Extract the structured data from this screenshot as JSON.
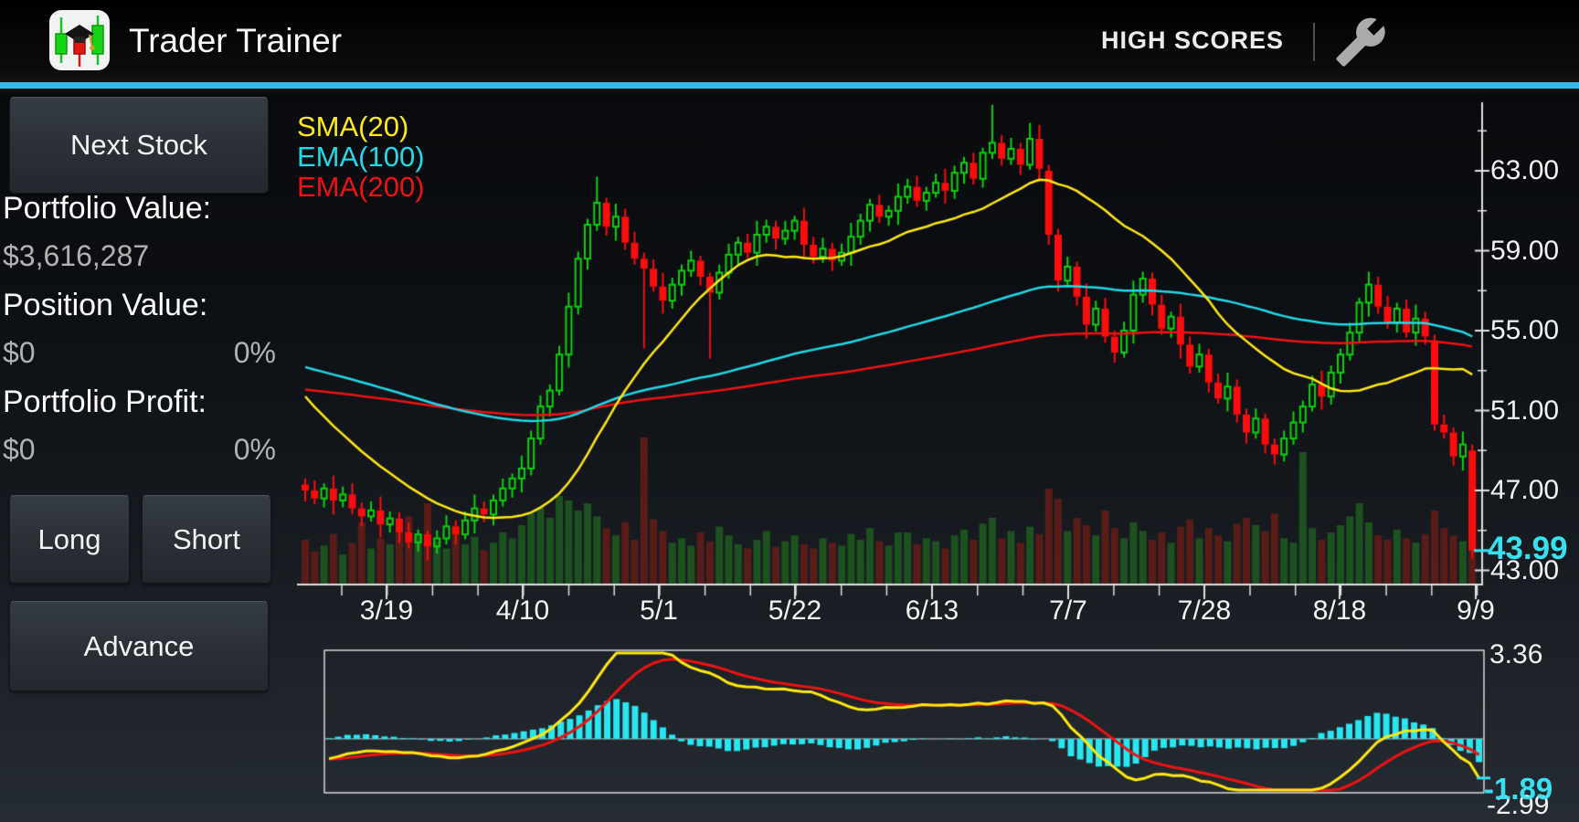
{
  "app_bar": {
    "title": "Trader Trainer",
    "menu_high_scores": "HIGH SCORES",
    "accent_color": "#38b9ea",
    "icons": [
      "app-candlestick-graduation-icon",
      "wrench-settings-icon"
    ]
  },
  "sidebar": {
    "next_stock_label": "Next Stock",
    "portfolio_value_label": "Portfolio Value:",
    "portfolio_value": "$3,616,287",
    "position_value_label": "Position Value:",
    "position_value": "$0",
    "position_percent": "0%",
    "portfolio_profit_label": "Portfolio Profit:",
    "portfolio_profit": "$0",
    "portfolio_profit_percent": "0%",
    "long_label": "Long",
    "short_label": "Short",
    "advance_label": "Advance"
  },
  "chart_data": {
    "type": "candlestick",
    "legend": [
      {
        "label": "SMA(20)",
        "color": "#ffe912"
      },
      {
        "label": "EMA(100)",
        "color": "#22d9e8"
      },
      {
        "label": "EMA(200)",
        "color": "#f01212"
      }
    ],
    "y_axis": {
      "labels": [
        "63.00",
        "59.00",
        "55.00",
        "51.00",
        "47.00",
        "43.00"
      ],
      "values": [
        63,
        59,
        55,
        51,
        47,
        43
      ],
      "minor_step": 2
    },
    "x_axis": {
      "labels": [
        "3/19",
        "4/10",
        "5/1",
        "5/22",
        "6/13",
        "7/7",
        "7/28",
        "8/18",
        "9/9"
      ]
    },
    "current_price_label": "43.99",
    "current_price_value": 43.99,
    "colors": {
      "up": "#0bd30b",
      "down": "#fb0d0d",
      "volume_up": "#1d5220",
      "volume_down": "#5a1c18",
      "axis": "#e0e0e0",
      "current": "#38e1f2"
    },
    "candles": [
      [
        47.3,
        47.6,
        46.45,
        47.0
      ],
      [
        47.0,
        47.5,
        46.3,
        46.6
      ],
      [
        46.6,
        47.35,
        46.15,
        47.1
      ],
      [
        47.1,
        47.75,
        45.8,
        46.5
      ],
      [
        46.5,
        47.2,
        46.15,
        46.8
      ],
      [
        46.8,
        47.35,
        45.8,
        46.1
      ],
      [
        46.1,
        46.4,
        45.2,
        45.7
      ],
      [
        45.7,
        46.45,
        45.45,
        46.0
      ],
      [
        46.0,
        46.7,
        44.65,
        45.3
      ],
      [
        45.3,
        45.95,
        44.9,
        45.6
      ],
      [
        45.6,
        45.9,
        44.35,
        44.9
      ],
      [
        44.9,
        45.4,
        44.1,
        44.4
      ],
      [
        44.4,
        45.05,
        43.95,
        44.8
      ],
      [
        44.8,
        45.0,
        43.5,
        44.2
      ],
      [
        44.2,
        45.0,
        43.85,
        44.6
      ],
      [
        44.6,
        45.75,
        44.3,
        45.2
      ],
      [
        45.2,
        45.5,
        44.3,
        44.8
      ],
      [
        44.8,
        45.95,
        44.55,
        45.5
      ],
      [
        45.5,
        46.8,
        44.85,
        46.1
      ],
      [
        46.1,
        46.45,
        45.4,
        45.8
      ],
      [
        45.8,
        46.8,
        45.25,
        46.5
      ],
      [
        46.5,
        47.6,
        46.2,
        47.1
      ],
      [
        47.1,
        47.85,
        46.65,
        47.6
      ],
      [
        47.6,
        48.75,
        46.9,
        48.1
      ],
      [
        48.1,
        50.0,
        47.75,
        49.6
      ],
      [
        49.6,
        51.75,
        49.3,
        51.2
      ],
      [
        51.2,
        52.3,
        50.7,
        52.0
      ],
      [
        52.0,
        54.25,
        51.75,
        53.8
      ],
      [
        53.8,
        56.9,
        53.15,
        56.2
      ],
      [
        56.2,
        58.95,
        55.8,
        58.6
      ],
      [
        58.6,
        60.6,
        58.05,
        60.3
      ],
      [
        60.3,
        62.7,
        60.0,
        61.4
      ],
      [
        61.4,
        61.65,
        59.75,
        60.2
      ],
      [
        60.2,
        61.35,
        59.5,
        60.7
      ],
      [
        60.7,
        61.1,
        59.05,
        59.4
      ],
      [
        59.4,
        59.95,
        58.3,
        58.6
      ],
      [
        58.6,
        58.9,
        54.1,
        58.1
      ],
      [
        58.1,
        58.55,
        56.95,
        57.2
      ],
      [
        57.2,
        57.9,
        55.85,
        56.5
      ],
      [
        56.5,
        57.65,
        56.1,
        57.3
      ],
      [
        57.3,
        58.3,
        56.75,
        58.0
      ],
      [
        58.0,
        59.0,
        57.7,
        58.5
      ],
      [
        58.5,
        58.75,
        57.25,
        57.7
      ],
      [
        57.7,
        57.9,
        53.6,
        56.9
      ],
      [
        56.9,
        58.3,
        56.55,
        57.9
      ],
      [
        57.9,
        59.35,
        57.6,
        58.8
      ],
      [
        58.8,
        59.7,
        58.3,
        59.4
      ],
      [
        59.4,
        59.85,
        58.65,
        58.9
      ],
      [
        58.9,
        60.5,
        58.25,
        59.8
      ],
      [
        59.8,
        60.55,
        59.4,
        60.2
      ],
      [
        60.2,
        60.5,
        59.05,
        59.6
      ],
      [
        59.6,
        60.5,
        59.3,
        60.0
      ],
      [
        60.0,
        60.75,
        59.55,
        60.5
      ],
      [
        60.5,
        61.15,
        58.6,
        59.3
      ],
      [
        59.3,
        59.7,
        58.35,
        58.7
      ],
      [
        58.7,
        59.65,
        58.4,
        59.1
      ],
      [
        59.1,
        59.4,
        58.0,
        58.5
      ],
      [
        58.5,
        59.35,
        58.25,
        58.9
      ],
      [
        58.9,
        60.4,
        58.25,
        59.7
      ],
      [
        59.7,
        60.85,
        59.3,
        60.5
      ],
      [
        60.5,
        61.6,
        59.95,
        61.3
      ],
      [
        61.3,
        61.8,
        60.4,
        60.7
      ],
      [
        60.7,
        61.25,
        60.25,
        61.0
      ],
      [
        61.0,
        62.35,
        60.3,
        61.7
      ],
      [
        61.7,
        62.6,
        61.35,
        62.2
      ],
      [
        62.2,
        62.75,
        61.2,
        61.5
      ],
      [
        61.5,
        62.2,
        61.0,
        61.9
      ],
      [
        61.9,
        62.85,
        61.65,
        62.4
      ],
      [
        62.4,
        63.1,
        61.35,
        62.0
      ],
      [
        62.0,
        63.25,
        61.6,
        62.9
      ],
      [
        62.9,
        63.7,
        62.35,
        63.4
      ],
      [
        63.4,
        63.9,
        62.3,
        62.6
      ],
      [
        62.6,
        64.15,
        62.15,
        63.9
      ],
      [
        63.9,
        66.3,
        63.6,
        64.4
      ],
      [
        64.4,
        64.8,
        63.25,
        63.6
      ],
      [
        63.6,
        64.65,
        63.3,
        64.1
      ],
      [
        64.1,
        64.4,
        62.8,
        63.3
      ],
      [
        63.3,
        65.4,
        63.05,
        64.6
      ],
      [
        64.6,
        65.3,
        62.45,
        63.1
      ],
      [
        63.0,
        63.3,
        59.3,
        59.8
      ],
      [
        59.8,
        60.1,
        56.95,
        57.5
      ],
      [
        57.5,
        58.7,
        57.2,
        58.2
      ],
      [
        58.2,
        58.45,
        56.25,
        56.7
      ],
      [
        56.7,
        57.35,
        54.6,
        55.3
      ],
      [
        55.3,
        56.5,
        54.95,
        56.1
      ],
      [
        56.1,
        56.65,
        54.4,
        54.7
      ],
      [
        54.7,
        55.0,
        53.4,
        53.9
      ],
      [
        53.9,
        55.45,
        53.65,
        55.0
      ],
      [
        55.0,
        57.5,
        54.35,
        56.8
      ],
      [
        56.8,
        57.95,
        56.4,
        57.6
      ],
      [
        57.6,
        57.9,
        55.75,
        56.3
      ],
      [
        56.3,
        56.8,
        54.8,
        55.1
      ],
      [
        55.1,
        55.95,
        54.65,
        55.7
      ],
      [
        55.7,
        56.35,
        53.6,
        54.3
      ],
      [
        54.3,
        54.7,
        52.85,
        53.2
      ],
      [
        53.2,
        54.35,
        52.9,
        53.8
      ],
      [
        53.8,
        54.1,
        51.9,
        52.4
      ],
      [
        52.4,
        52.85,
        51.35,
        51.6
      ],
      [
        51.6,
        52.9,
        50.95,
        52.2
      ],
      [
        52.2,
        52.55,
        50.4,
        50.8
      ],
      [
        50.8,
        51.1,
        49.35,
        49.9
      ],
      [
        49.9,
        51.1,
        49.6,
        50.6
      ],
      [
        50.6,
        50.85,
        48.85,
        49.3
      ],
      [
        49.3,
        49.6,
        48.3,
        48.8
      ],
      [
        48.8,
        50.0,
        48.45,
        49.6
      ],
      [
        49.6,
        50.95,
        49.3,
        50.4
      ],
      [
        50.4,
        51.5,
        49.9,
        51.2
      ],
      [
        51.2,
        52.75,
        50.95,
        52.3
      ],
      [
        52.3,
        53.0,
        51.05,
        51.7
      ],
      [
        51.7,
        53.25,
        51.3,
        52.9
      ],
      [
        52.9,
        54.1,
        52.35,
        53.8
      ],
      [
        53.8,
        55.4,
        53.5,
        54.9
      ],
      [
        54.9,
        56.65,
        54.45,
        56.4
      ],
      [
        56.4,
        57.95,
        55.7,
        57.3
      ],
      [
        57.3,
        57.7,
        55.85,
        56.2
      ],
      [
        56.2,
        56.75,
        55.1,
        55.4
      ],
      [
        55.4,
        56.4,
        54.9,
        56.1
      ],
      [
        56.1,
        56.55,
        54.65,
        54.9
      ],
      [
        54.9,
        56.3,
        54.25,
        55.6
      ],
      [
        55.6,
        55.95,
        54.3,
        54.7
      ],
      [
        54.5,
        54.8,
        50.0,
        50.3
      ],
      [
        50.3,
        50.8,
        49.6,
        49.9
      ],
      [
        49.9,
        50.15,
        48.25,
        48.7
      ],
      [
        48.7,
        49.95,
        48.0,
        49.3
      ],
      [
        49.0,
        49.3,
        43.6,
        43.99
      ]
    ],
    "volumes": [
      30,
      22,
      26,
      34,
      20,
      28,
      42,
      24,
      31,
      27,
      38,
      46,
      33,
      55,
      29,
      24,
      36,
      27,
      32,
      23,
      28,
      35,
      31,
      40,
      48,
      52,
      45,
      60,
      57,
      50,
      55,
      46,
      38,
      33,
      42,
      30,
      100,
      44,
      36,
      28,
      31,
      26,
      35,
      29,
      39,
      33,
      27,
      24,
      30,
      36,
      25,
      29,
      33,
      27,
      24,
      31,
      28,
      26,
      34,
      30,
      38,
      29,
      26,
      35,
      35,
      27,
      31,
      29,
      24,
      33,
      37,
      30,
      41,
      45,
      31,
      36,
      28,
      39,
      34,
      65,
      58,
      36,
      45,
      40,
      33,
      50,
      38,
      31,
      42,
      36,
      30,
      35,
      28,
      39,
      44,
      31,
      38,
      33,
      29,
      41,
      45,
      40,
      36,
      48,
      31,
      28,
      90,
      38,
      30,
      35,
      40,
      46,
      55,
      42,
      33,
      30,
      37,
      31,
      28,
      34,
      50,
      38,
      33,
      29,
      65
    ],
    "sma_pre_closes": [
      57.2,
      56.6,
      56.0,
      55.3,
      54.7,
      54.1,
      53.5,
      52.9,
      52.3,
      51.7,
      51.1,
      50.6,
      50.1,
      49.6,
      49.1,
      48.7,
      48.3,
      47.9,
      47.5
    ],
    "ema100_seed": 53.3,
    "ema200_seed": 52.1,
    "indicator": {
      "max_label": "3.36",
      "last_value_label": "-1.89",
      "min_axis_label": "-2.99",
      "seeds": {
        "ema12": 46.2,
        "ema26": 47.1,
        "signal": -0.8
      },
      "range_max": 3.45,
      "range_min": -2.1,
      "colors": {
        "histogram": "#28e6f2",
        "macd": "#ffe912",
        "signal": "#f01212",
        "border": "#d8d8d8",
        "zero": "#c8c8c8"
      }
    }
  }
}
